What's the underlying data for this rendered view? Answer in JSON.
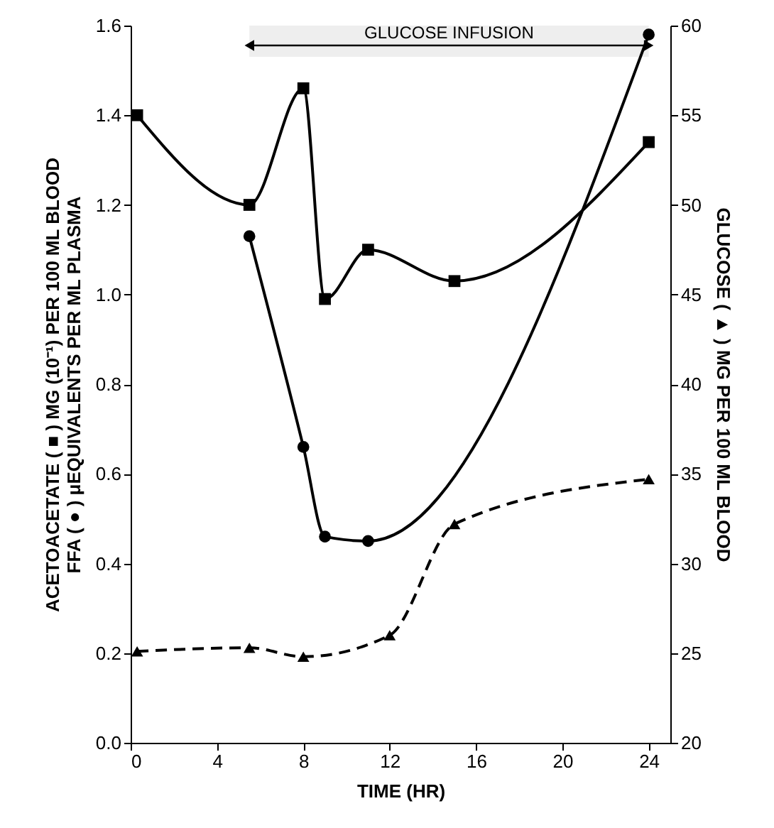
{
  "chart_data": {
    "type": "line",
    "xlabel": "TIME (HR)",
    "ylabel": "ACETOACETATE ( ■ ) MG (10⁻¹) PER 100 ML BLOOD\nFFA ( ● ) μEQUIVALENTS PER ML PLASMA",
    "y2label": "GLUCOSE ( ▲ ) MG PER 100 ML BLOOD",
    "xlim": [
      0,
      25
    ],
    "xticks": [
      0,
      4,
      8,
      12,
      16,
      20,
      24
    ],
    "ylim": [
      0,
      1.6
    ],
    "yticks": [
      {
        "value": 0,
        "label": "0.0"
      },
      0.2,
      0.4,
      0.6,
      0.8,
      {
        "value": 1,
        "label": "1.0"
      },
      1.2,
      1.4,
      1.6
    ],
    "y2lim": [
      20,
      60
    ],
    "y2ticks": [
      20,
      25,
      30,
      35,
      40,
      45,
      50,
      55,
      60
    ],
    "grid": false,
    "bands": [
      {
        "axis": "x",
        "from": 5.5,
        "to": 24,
        "label": "GLUCOSE INFUSION"
      }
    ],
    "series": [
      {
        "color": "#000000",
        "marker": "square",
        "line_style": "solid",
        "x": [
          0.3,
          5.5,
          8,
          9,
          11,
          15,
          24
        ],
        "values": [
          1.4,
          1.2,
          1.46,
          0.99,
          1.1,
          1.03,
          1.34
        ]
      },
      {
        "color": "#000000",
        "marker": "circle",
        "line_style": "solid",
        "x": [
          5.5,
          8,
          9,
          11,
          24
        ],
        "values": [
          1.13,
          0.66,
          0.46,
          0.45,
          1.58
        ]
      },
      {
        "color": "#000000",
        "marker": "triangle",
        "line_style": "dashed",
        "axis": "y2",
        "x": [
          0.3,
          5.5,
          8,
          12,
          15,
          24
        ],
        "values": [
          25.1,
          25.3,
          24.8,
          26,
          32.2,
          34.7
        ]
      }
    ]
  }
}
